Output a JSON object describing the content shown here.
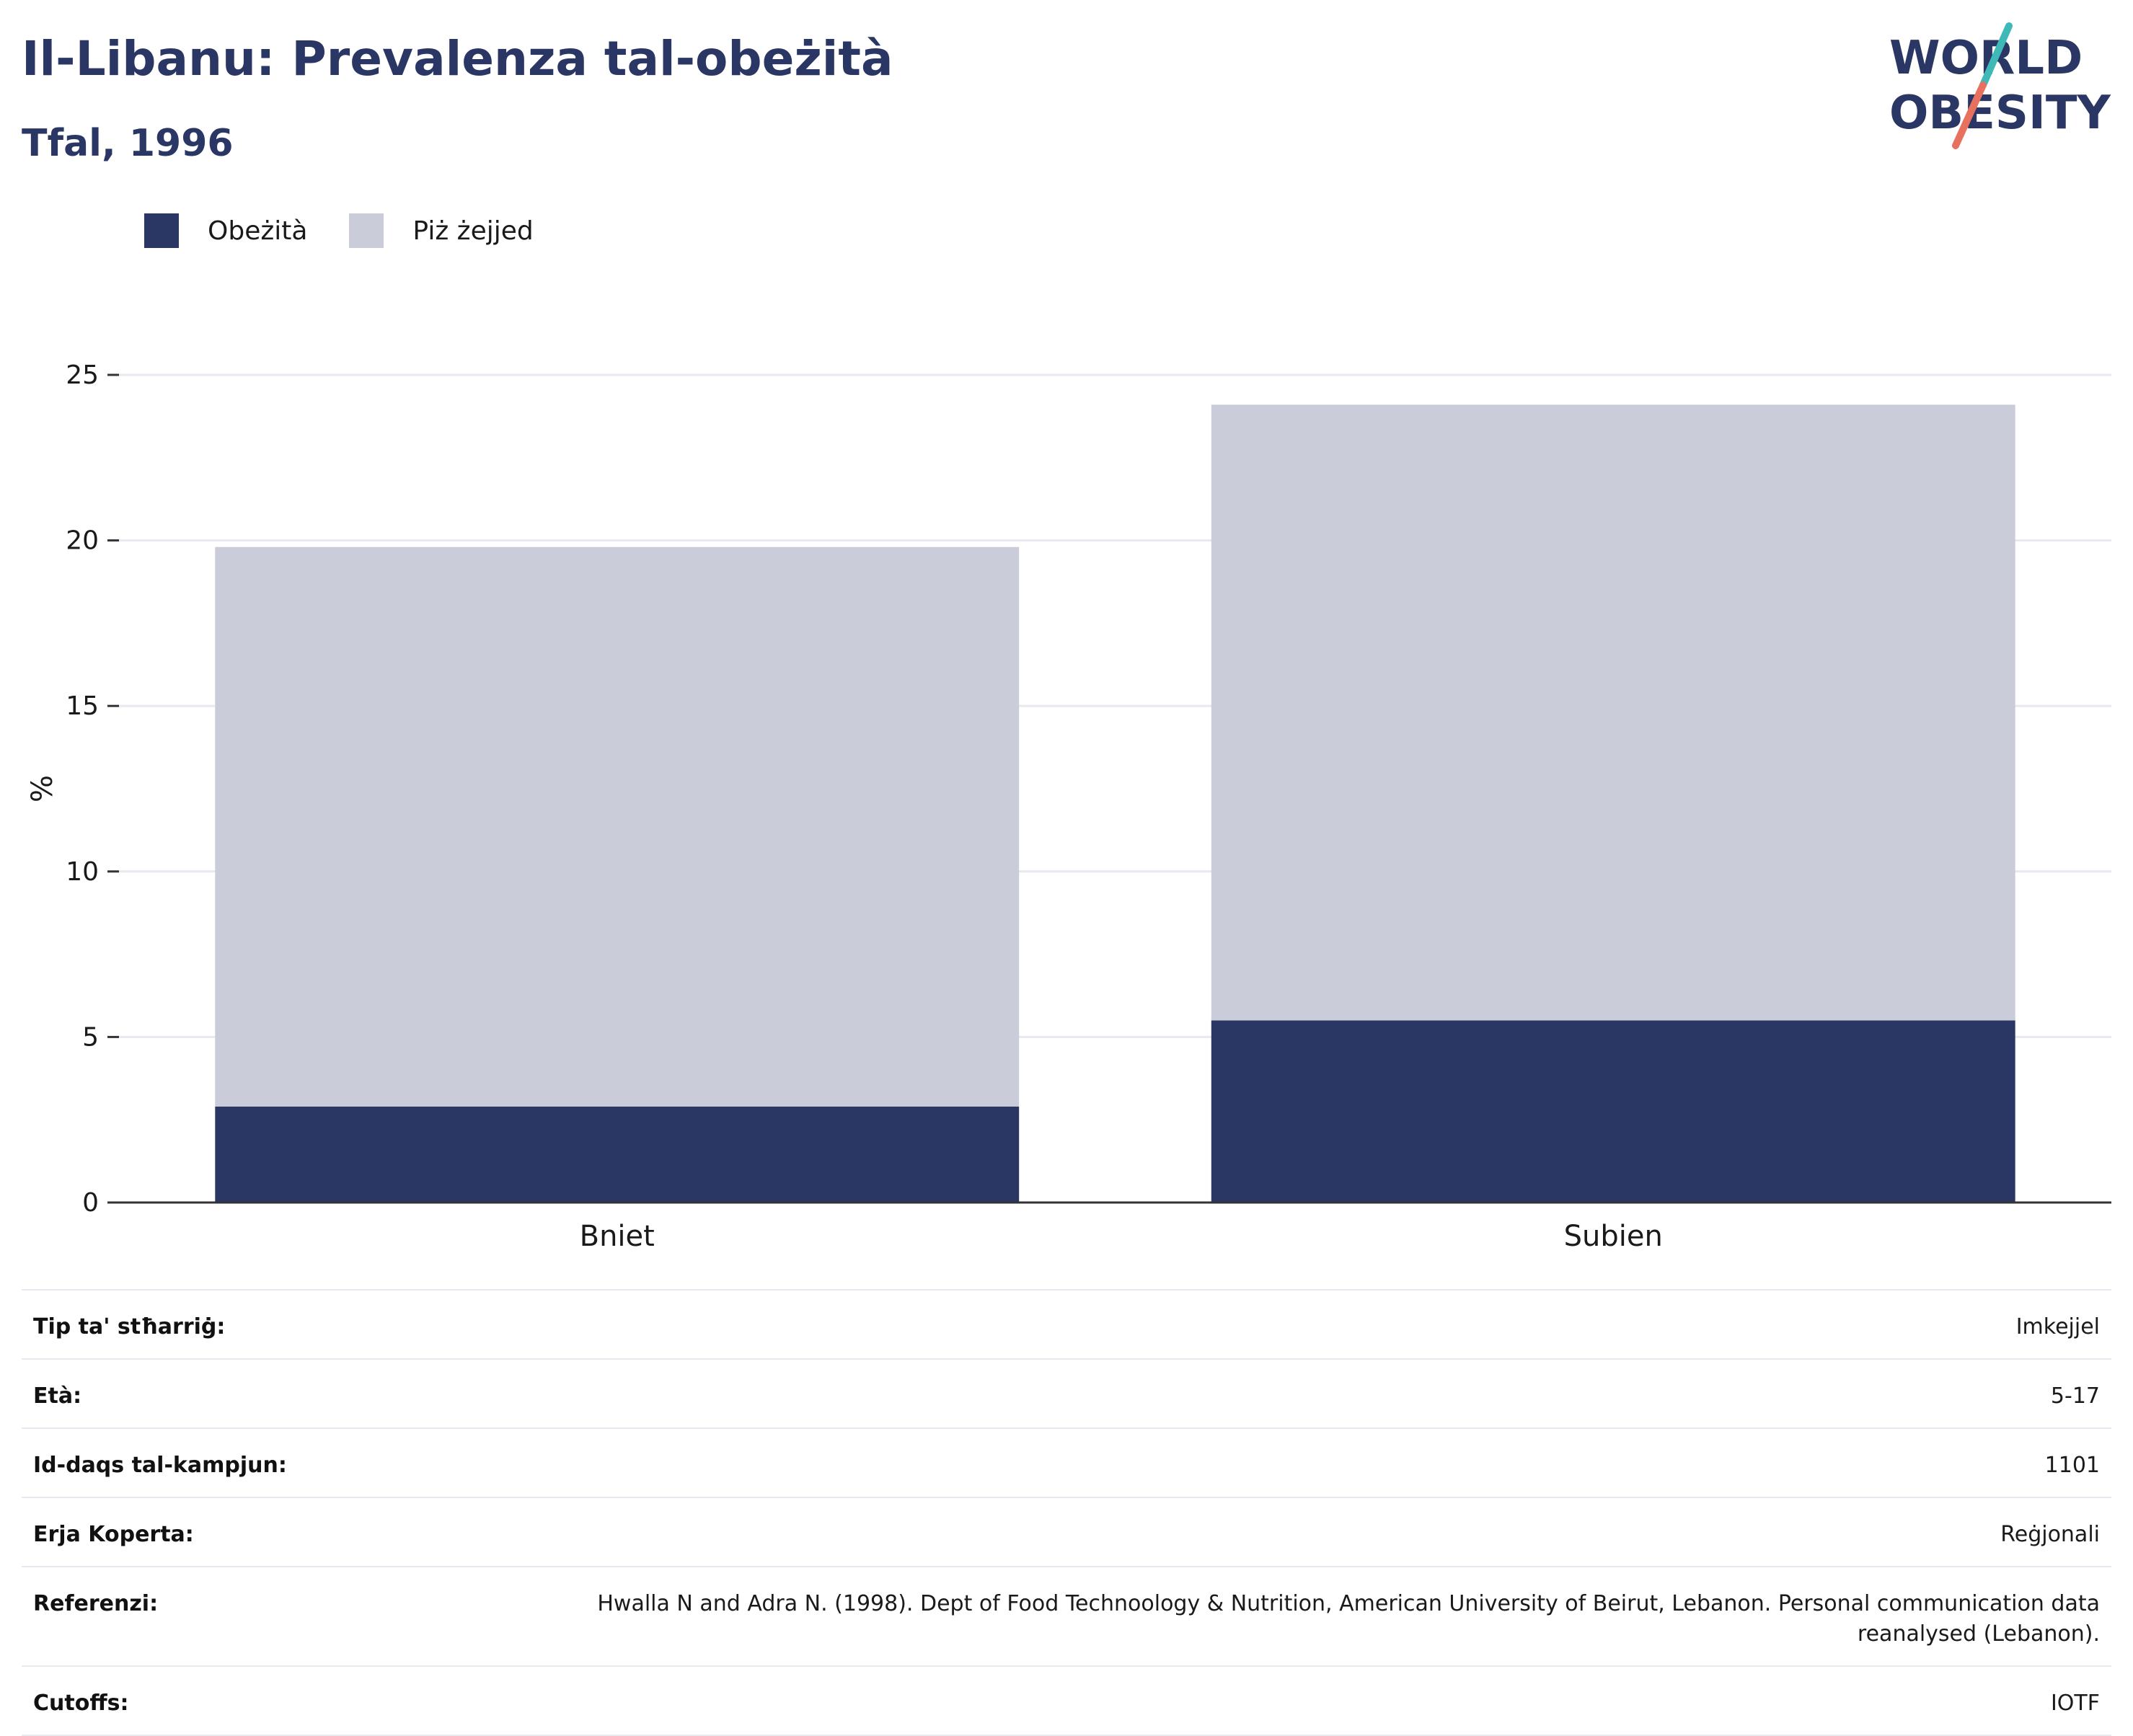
{
  "header": {
    "title": "Il-Libanu: Prevalenza tal-obeżità",
    "subtitle": "Tfal, 1996"
  },
  "logo": {
    "line1": "WORLD",
    "line2": "OBESITY",
    "colors": {
      "text": "#2a3664",
      "slash_top": "#3fb8b8",
      "slash_bottom": "#e8705f"
    }
  },
  "legend": [
    {
      "label": "Obeżità",
      "color": "#2a3664"
    },
    {
      "label": "Piż żejjed",
      "color": "#cacdd9"
    }
  ],
  "chart_data": {
    "type": "bar",
    "stacked": true,
    "categories": [
      "Bniet",
      "Subien"
    ],
    "series": [
      {
        "name": "Obeżità",
        "values": [
          2.9,
          5.5
        ],
        "color": "#2a3664"
      },
      {
        "name": "Piż żejjed",
        "values": [
          16.9,
          18.6
        ],
        "color": "#cacdd9"
      }
    ],
    "title": "",
    "xlabel": "",
    "ylabel": "%",
    "ylim": [
      0,
      25
    ],
    "yticks": [
      0,
      5,
      10,
      15,
      20,
      25
    ],
    "grid": true,
    "legend_position": "top-left"
  },
  "meta": [
    {
      "key": "Tip ta' stħarriġ:",
      "value": "Imkejjel"
    },
    {
      "key": "Età:",
      "value": "5-17"
    },
    {
      "key": "Id-daqs tal-kampjun:",
      "value": "1101"
    },
    {
      "key": "Erja Koperta:",
      "value": "Reġjonali"
    },
    {
      "key": "Referenzi:",
      "value": "Hwalla N and Adra N. (1998). Dept of Food Technoology & Nutrition, American University of Beirut, Lebanon. Personal communication data reanalysed (Lebanon)."
    },
    {
      "key": "Cutoffs:",
      "value": "IOTF"
    }
  ]
}
